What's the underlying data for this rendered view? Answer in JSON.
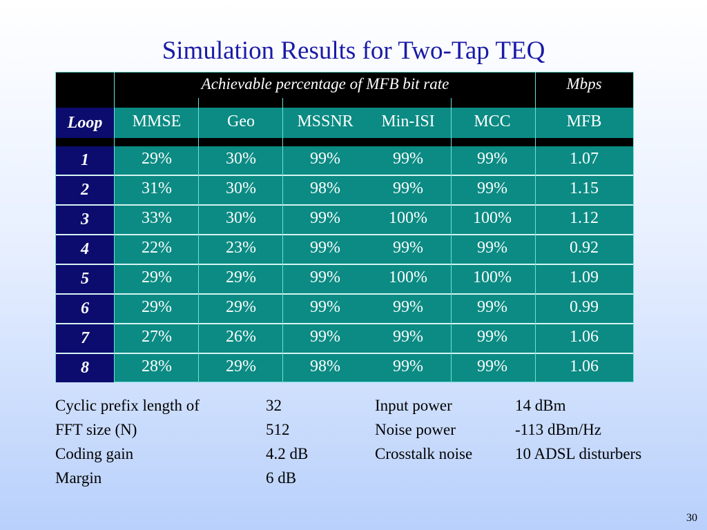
{
  "slide": {
    "title": "Simulation Results for Two-Tap TEQ",
    "page_number": "30"
  },
  "table": {
    "group_header": "Achievable percentage of MFB bit rate",
    "unit_header": "Mbps",
    "columns": [
      "Loop",
      "MMSE",
      "Geo",
      "MSSNR",
      "Min-ISI",
      "MCC",
      "MFB"
    ],
    "rows": [
      {
        "loop": "1",
        "mmse": "29%",
        "geo": "30%",
        "mssnr": "99%",
        "minisi": "99%",
        "mcc": "99%",
        "mfb": "1.07"
      },
      {
        "loop": "2",
        "mmse": "31%",
        "geo": "30%",
        "mssnr": "98%",
        "minisi": "99%",
        "mcc": "99%",
        "mfb": "1.15"
      },
      {
        "loop": "3",
        "mmse": "33%",
        "geo": "30%",
        "mssnr": "99%",
        "minisi": "100%",
        "mcc": "100%",
        "mfb": "1.12"
      },
      {
        "loop": "4",
        "mmse": "22%",
        "geo": "23%",
        "mssnr": "99%",
        "minisi": "99%",
        "mcc": "99%",
        "mfb": "0.92"
      },
      {
        "loop": "5",
        "mmse": "29%",
        "geo": "29%",
        "mssnr": "99%",
        "minisi": "100%",
        "mcc": "100%",
        "mfb": "1.09"
      },
      {
        "loop": "6",
        "mmse": "29%",
        "geo": "29%",
        "mssnr": "99%",
        "minisi": "99%",
        "mcc": "99%",
        "mfb": "0.99"
      },
      {
        "loop": "7",
        "mmse": "27%",
        "geo": "26%",
        "mssnr": "99%",
        "minisi": "99%",
        "mcc": "99%",
        "mfb": "1.06"
      },
      {
        "loop": "8",
        "mmse": "28%",
        "geo": "29%",
        "mssnr": "98%",
        "minisi": "99%",
        "mcc": "99%",
        "mfb": "1.06"
      }
    ]
  },
  "parameters": [
    {
      "label": "Cyclic prefix length of",
      "value": "32",
      "label2": "Input power",
      "value2": "14 dBm"
    },
    {
      "label": "FFT size (N)",
      "value": "512",
      "label2": "Noise power",
      "value2": "-113 dBm/Hz"
    },
    {
      "label": "Coding gain",
      "value": "4.2 dB",
      "label2": "Crosstalk noise",
      "value2": "10 ADSL disturbers"
    },
    {
      "label": "Margin",
      "value": "6 dB",
      "label2": "",
      "value2": ""
    }
  ],
  "colors": {
    "title": "#1a1aa6",
    "table_bg": "#0b8b83",
    "loop_cell": "#0c0c6e",
    "header_band": "#000000"
  }
}
